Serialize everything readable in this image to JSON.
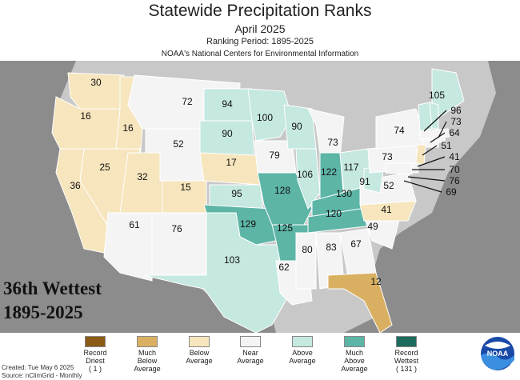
{
  "header": {
    "title": "Statewide Precipitation Ranks",
    "subtitle": "April 2025",
    "period": "Ranking Period: 1895-2025",
    "source": "NOAA's National Centers for Environmental Information"
  },
  "overlay": {
    "line1": "36th Wettest",
    "line2": "1895-2025"
  },
  "legend": [
    {
      "label": "Record\nDriest\n( 1 )",
      "color": "#8b5a14"
    },
    {
      "label": "Much\nBelow\nAverage",
      "color": "#d9b061"
    },
    {
      "label": "Below\nAverage",
      "color": "#f6e5bd"
    },
    {
      "label": "Near\nAverage",
      "color": "#f4f4f4"
    },
    {
      "label": "Above\nAverage",
      "color": "#c5e8e0"
    },
    {
      "label": "Much\nAbove\nAverage",
      "color": "#5db5a6"
    },
    {
      "label": "Record\nWettest\n( 131 )",
      "color": "#1d6b5c"
    }
  ],
  "footer": {
    "created": "Created: Tue May  6 2025",
    "source": "Source: nClimGrid - Monthly"
  },
  "logo": {
    "text": "NOAA"
  },
  "map_colors": {
    "background": "#8c8c8c",
    "land_outside": "#c8c8c8",
    "border": "#ffffff"
  },
  "states": [
    {
      "code": "WA",
      "rank": "30",
      "cat": 2
    },
    {
      "code": "OR",
      "rank": "16",
      "cat": 2
    },
    {
      "code": "ID",
      "rank": "16",
      "cat": 2
    },
    {
      "code": "MT",
      "rank": "72",
      "cat": 3
    },
    {
      "code": "WY",
      "rank": "52",
      "cat": 3
    },
    {
      "code": "NV",
      "rank": "25",
      "cat": 2
    },
    {
      "code": "CA",
      "rank": "36",
      "cat": 2
    },
    {
      "code": "UT",
      "rank": "32",
      "cat": 2
    },
    {
      "code": "CO",
      "rank": "15",
      "cat": 2
    },
    {
      "code": "AZ",
      "rank": "61",
      "cat": 3
    },
    {
      "code": "NM",
      "rank": "76",
      "cat": 3
    },
    {
      "code": "ND",
      "rank": "94",
      "cat": 4
    },
    {
      "code": "SD",
      "rank": "90",
      "cat": 4
    },
    {
      "code": "NE",
      "rank": "17",
      "cat": 2
    },
    {
      "code": "KS",
      "rank": "95",
      "cat": 4
    },
    {
      "code": "OK",
      "rank": "129",
      "cat": 5
    },
    {
      "code": "TX",
      "rank": "103",
      "cat": 4
    },
    {
      "code": "MN",
      "rank": "100",
      "cat": 4
    },
    {
      "code": "IA",
      "rank": "79",
      "cat": 3
    },
    {
      "code": "MO",
      "rank": "128",
      "cat": 5
    },
    {
      "code": "AR",
      "rank": "125",
      "cat": 5
    },
    {
      "code": "LA",
      "rank": "62",
      "cat": 3
    },
    {
      "code": "WI",
      "rank": "90",
      "cat": 4
    },
    {
      "code": "IL",
      "rank": "106",
      "cat": 4
    },
    {
      "code": "MI",
      "rank": "73",
      "cat": 3
    },
    {
      "code": "IN",
      "rank": "122",
      "cat": 5
    },
    {
      "code": "OH",
      "rank": "117",
      "cat": 4
    },
    {
      "code": "KY",
      "rank": "130",
      "cat": 5
    },
    {
      "code": "TN",
      "rank": "120",
      "cat": 5
    },
    {
      "code": "MS",
      "rank": "80",
      "cat": 3
    },
    {
      "code": "AL",
      "rank": "83",
      "cat": 3
    },
    {
      "code": "GA",
      "rank": "67",
      "cat": 3
    },
    {
      "code": "FL",
      "rank": "12",
      "cat": 1
    },
    {
      "code": "SC",
      "rank": "49",
      "cat": 3
    },
    {
      "code": "NC",
      "rank": "41",
      "cat": 2
    },
    {
      "code": "VA",
      "rank": "52",
      "cat": 3
    },
    {
      "code": "WV",
      "rank": "91",
      "cat": 4
    },
    {
      "code": "PA",
      "rank": "73",
      "cat": 3
    },
    {
      "code": "NY",
      "rank": "74",
      "cat": 3
    },
    {
      "code": "ME",
      "rank": "105",
      "cat": 4
    },
    {
      "code": "VT",
      "rank": "",
      "cat": 4
    },
    {
      "code": "NH",
      "rank": "",
      "cat": 4
    },
    {
      "code": "MA",
      "rank": "",
      "cat": 3
    },
    {
      "code": "RI",
      "rank": "",
      "cat": 3
    },
    {
      "code": "CT",
      "rank": "",
      "cat": 3
    },
    {
      "code": "NJ",
      "rank": "",
      "cat": 2
    },
    {
      "code": "DE",
      "rank": "",
      "cat": 3
    },
    {
      "code": "MD",
      "rank": "",
      "cat": 3
    }
  ],
  "callouts": [
    "96",
    "73",
    "64",
    "51",
    "41",
    "70",
    "76",
    "69"
  ]
}
